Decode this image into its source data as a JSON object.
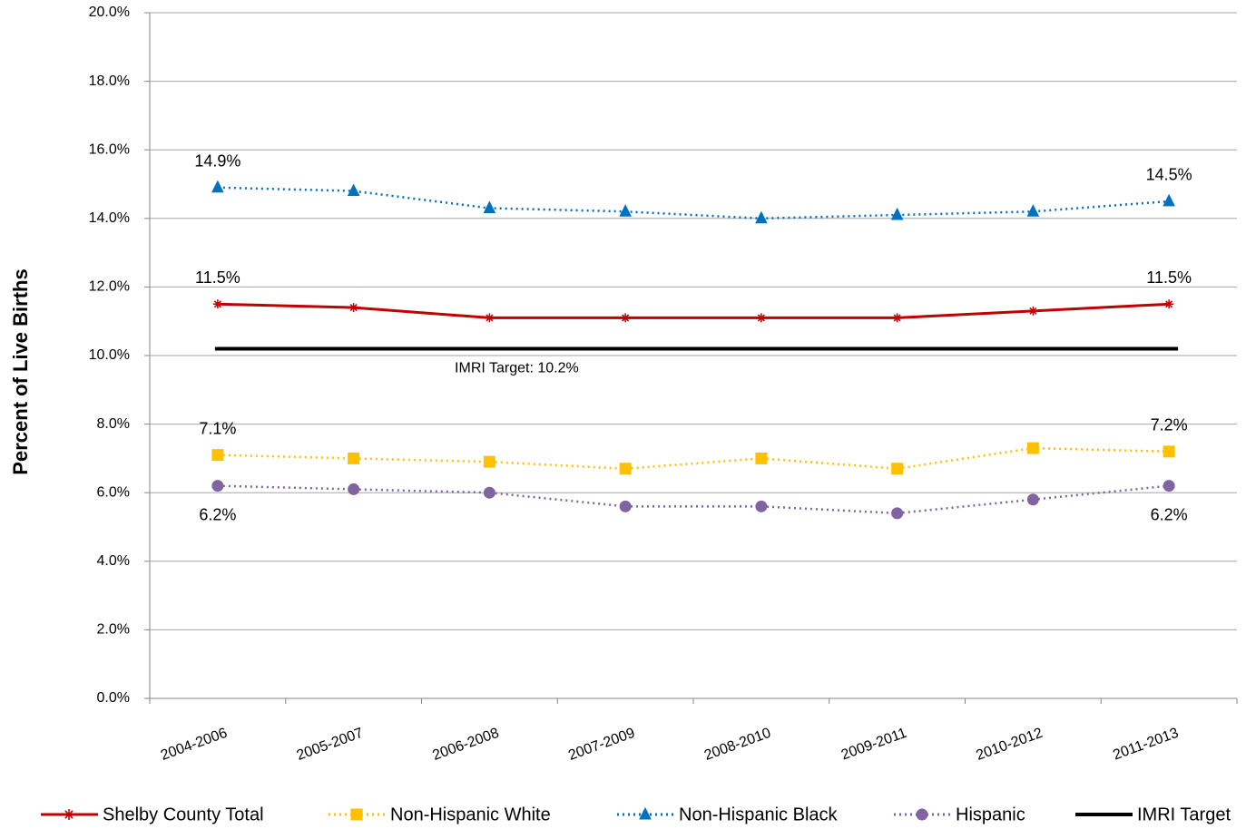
{
  "chart_data": {
    "type": "line",
    "y_label": "Percent of Live Births",
    "categories": [
      "2004-2006",
      "2005-2007",
      "2006-2008",
      "2007-2009",
      "2008-2010",
      "2009-2011",
      "2010-2012",
      "2011-2013"
    ],
    "ylim": [
      0,
      20
    ],
    "yticks": [
      {
        "value": 0,
        "label": "0.0%"
      },
      {
        "value": 2,
        "label": "2.0%"
      },
      {
        "value": 4,
        "label": "4.0%"
      },
      {
        "value": 6,
        "label": "6.0%"
      },
      {
        "value": 8,
        "label": "8.0%"
      },
      {
        "value": 10,
        "label": "10.0%"
      },
      {
        "value": 12,
        "label": "12.0%"
      },
      {
        "value": 14,
        "label": "14.0%"
      },
      {
        "value": 16,
        "label": "16.0%"
      },
      {
        "value": 18,
        "label": "18.0%"
      },
      {
        "value": 20,
        "label": "20.0%"
      }
    ],
    "grid": true,
    "legend": "bottom",
    "series": [
      {
        "name": "Shelby County Total",
        "color": "#c00000",
        "marker": "star",
        "dash": "solid",
        "label_position": "above",
        "values": [
          11.5,
          11.4,
          11.1,
          11.1,
          11.1,
          11.1,
          11.3,
          11.5
        ],
        "value_labels": [
          "11.5%",
          null,
          null,
          null,
          null,
          null,
          null,
          "11.5%"
        ]
      },
      {
        "name": "Non-Hispanic White",
        "color": "#ffc000",
        "marker": "square",
        "dash": "dotted",
        "label_position": "above",
        "values": [
          7.1,
          7.0,
          6.9,
          6.7,
          7.0,
          6.7,
          7.3,
          7.2
        ],
        "value_labels": [
          "7.1%",
          null,
          null,
          null,
          null,
          null,
          null,
          "7.2%"
        ]
      },
      {
        "name": "Non-Hispanic Black",
        "color": "#0070c0",
        "marker": "triangle",
        "dash": "dotted",
        "label_position": "above",
        "values": [
          14.9,
          14.8,
          14.3,
          14.2,
          14.0,
          14.1,
          14.2,
          14.5
        ],
        "value_labels": [
          "14.9%",
          null,
          null,
          null,
          null,
          null,
          null,
          "14.5%"
        ]
      },
      {
        "name": "Hispanic",
        "color": "#8064a2",
        "marker": "circle",
        "dash": "dotted",
        "label_position": "below",
        "values": [
          6.2,
          6.1,
          6.0,
          5.6,
          5.6,
          5.4,
          5.8,
          6.2
        ],
        "value_labels": [
          "6.2%",
          null,
          null,
          null,
          null,
          null,
          null,
          "6.2%"
        ]
      },
      {
        "name": "IMRI Target",
        "color": "#000000",
        "marker": "none",
        "dash": "solid",
        "label_position": "above",
        "values": [
          10.2,
          10.2,
          10.2,
          10.2,
          10.2,
          10.2,
          10.2,
          10.2
        ]
      }
    ],
    "annotations": [
      {
        "text": "IMRI Target: 10.2%",
        "category": 2,
        "value": 10.2
      }
    ]
  }
}
